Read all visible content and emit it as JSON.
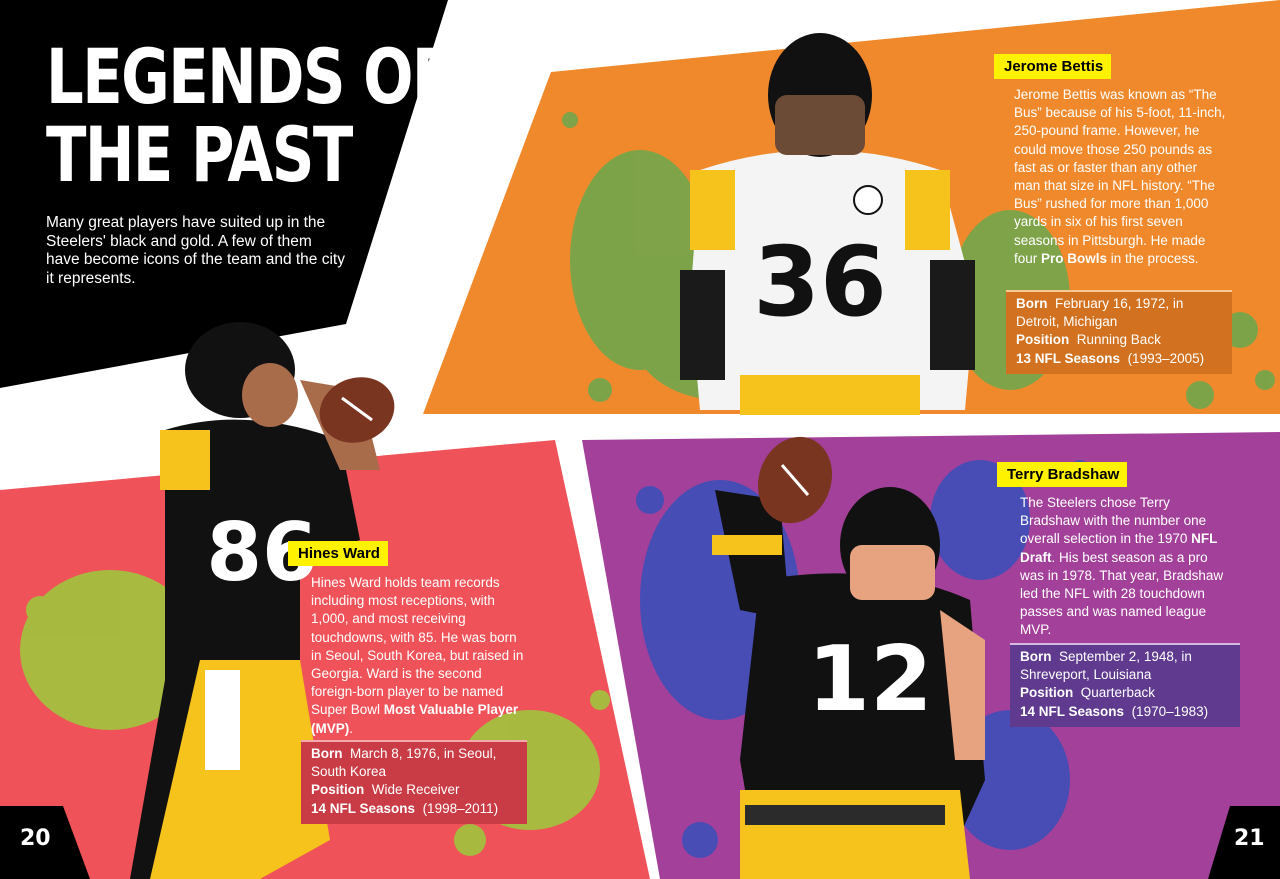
{
  "spread": {
    "title_line1": "LEGENDS OF",
    "title_line2": "THE PAST",
    "intro": "Many great players have suited up in the Steelers' black and gold. A few of them have become icons of the team and the city it represents."
  },
  "players": [
    {
      "name": "Jerome Bettis",
      "jersey": "36",
      "bio_1": "Jerome Bettis  was known as “The Bus” because of his 5-foot, 11-inch, 250-pound frame. However, he could move those 250 pounds as fast as or faster than any other man that size in NFL history. “The Bus” rushed for more than 1,000 yards in six of his first seven seasons in Pittsburgh. He made four ",
      "bio_bold": "Pro Bowls",
      "bio_2": " in the process.",
      "born_label": "Born",
      "born": "February 16, 1972, in Detroit, Michigan",
      "position_label": "Position",
      "position": "Running Back",
      "seasons_label": "13 NFL Seasons",
      "seasons": "(1993–2005)"
    },
    {
      "name": "Hines Ward",
      "jersey": "86",
      "bio_1": "Hines Ward holds team records including most receptions, with 1,000, and most receiving touchdowns, with 85. He was born in Seoul, South Korea, but raised in Georgia. Ward is the second foreign-born player to be named Super Bowl ",
      "bio_bold": "Most Valuable Player (MVP)",
      "bio_2": ".",
      "born_label": "Born",
      "born": "March 8, 1976, in Seoul, South Korea",
      "position_label": "Position",
      "position": "Wide Receiver",
      "seasons_label": "14 NFL Seasons",
      "seasons": "(1998–2011)"
    },
    {
      "name": "Terry Bradshaw",
      "jersey": "12",
      "bio_1": "The Steelers chose Terry Bradshaw with the number one overall selection in the 1970 ",
      "bio_bold": "NFL Draft",
      "bio_2": ". His best season as a pro was in 1978. That year, Bradshaw led the NFL with 28 touchdown passes and was named league MVP.",
      "born_label": "Born",
      "born": "September 2, 1948, in Shreveport, Louisiana",
      "position_label": "Position",
      "position": "Quarterback",
      "seasons_label": "14 NFL Seasons",
      "seasons": "(1970–1983)"
    }
  ],
  "pages": {
    "left": "20",
    "right": "21"
  },
  "colors": {
    "black_panel": "#000000",
    "bettis_panel": "#f0892c",
    "bettis_splash": "#6aa84f",
    "ward_panel": "#ef5258",
    "ward_splash": "#9ccc3c",
    "bradshaw_panel": "#a3409a",
    "bradshaw_splash": "#3d4fb8",
    "tag": "#fff200",
    "steelers_gold": "#f6c21c"
  },
  "icons": [
    "football-icon",
    "football-icon"
  ]
}
